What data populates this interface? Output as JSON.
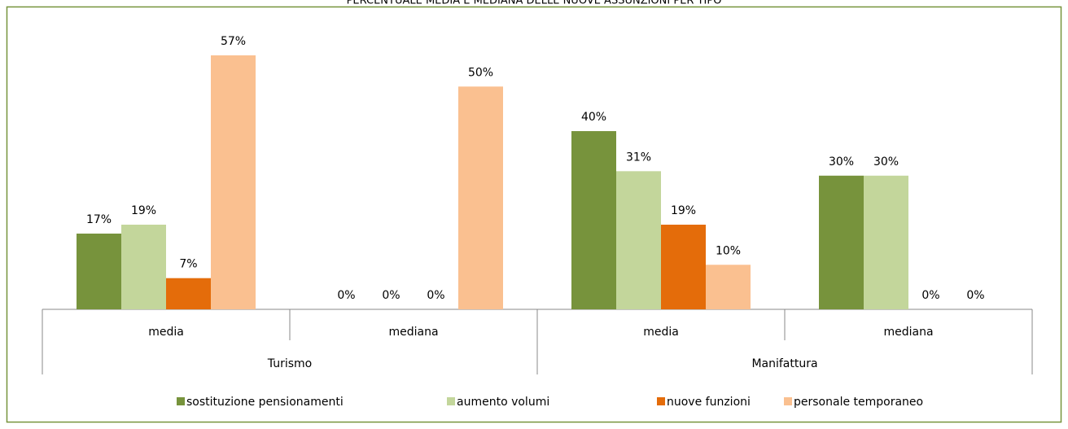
{
  "chart_data": {
    "type": "bar",
    "title": "PERCENTUALE MEDIA E MEDIANA DELLE NUOVE ASSUNZIONI PER TIPO",
    "groups": [
      {
        "label": "Turismo",
        "categories": [
          "media",
          "mediana"
        ]
      },
      {
        "label": "Manifattura",
        "categories": [
          "media",
          "mediana"
        ]
      }
    ],
    "series": [
      {
        "name": "sostituzione pensionamenti",
        "color": "#77933c",
        "values": [
          17,
          0,
          40,
          30
        ],
        "value_labels": [
          "17%",
          "0%",
          "40%",
          "30%"
        ]
      },
      {
        "name": "aumento volumi",
        "color": "#c3d69b",
        "values": [
          19,
          0,
          31,
          30
        ],
        "value_labels": [
          "19%",
          "0%",
          "31%",
          "30%"
        ]
      },
      {
        "name": "nuove funzioni",
        "color": "#e46c0a",
        "values": [
          7,
          0,
          19,
          0
        ],
        "value_labels": [
          "7%",
          "0%",
          "19%",
          "0%"
        ]
      },
      {
        "name": "personale temporaneo",
        "color": "#fac090",
        "values": [
          57,
          50,
          10,
          0
        ],
        "value_labels": [
          "57%",
          "50%",
          "10%",
          "0%"
        ]
      }
    ],
    "legend": "bottom"
  }
}
